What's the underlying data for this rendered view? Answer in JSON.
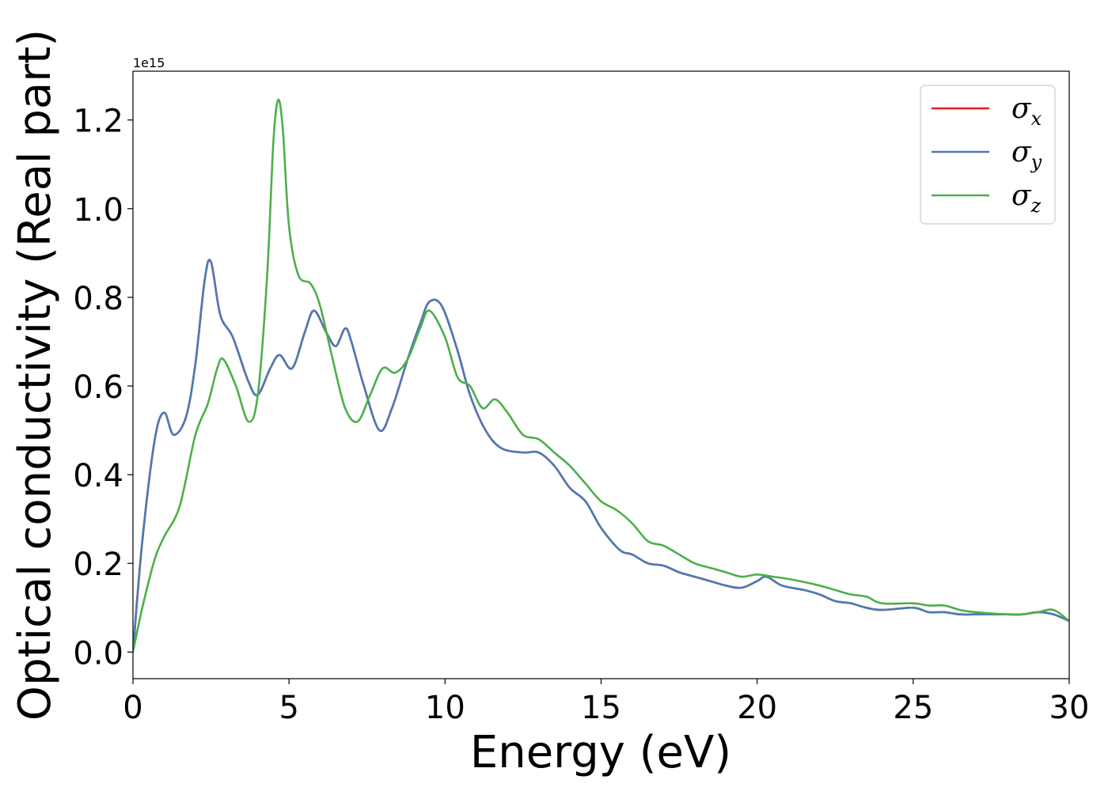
{
  "chart_data": {
    "type": "line",
    "title": "",
    "xlabel": "Energy (eV)",
    "ylabel": "Optical conductivity (Real part)",
    "y_multiplier": "1e15",
    "xlim": [
      0,
      30
    ],
    "ylim": [
      -0.06,
      1.31
    ],
    "x_ticks": [
      0,
      5,
      10,
      15,
      20,
      25,
      30
    ],
    "x_tick_labels": [
      "0",
      "5",
      "10",
      "15",
      "20",
      "25",
      "30"
    ],
    "y_ticks": [
      0.0,
      0.2,
      0.4,
      0.6,
      0.8,
      1.0,
      1.2
    ],
    "y_tick_labels": [
      "0.0",
      "0.2",
      "0.4",
      "0.6",
      "0.8",
      "1.0",
      "1.2"
    ],
    "grid": false,
    "legend_position": "top-right",
    "series": [
      {
        "name": "σx",
        "symbol": "σ",
        "subscript": "x",
        "color": "#e41a1c",
        "points": [
          [
            0,
            0
          ],
          [
            0.3,
            0.25
          ],
          [
            0.7,
            0.48
          ],
          [
            1.0,
            0.54
          ],
          [
            1.3,
            0.49
          ],
          [
            1.7,
            0.53
          ],
          [
            2.0,
            0.65
          ],
          [
            2.3,
            0.84
          ],
          [
            2.5,
            0.88
          ],
          [
            2.8,
            0.76
          ],
          [
            3.2,
            0.71
          ],
          [
            3.7,
            0.61
          ],
          [
            4.0,
            0.58
          ],
          [
            4.4,
            0.64
          ],
          [
            4.7,
            0.67
          ],
          [
            5.1,
            0.64
          ],
          [
            5.5,
            0.72
          ],
          [
            5.8,
            0.77
          ],
          [
            6.2,
            0.72
          ],
          [
            6.5,
            0.69
          ],
          [
            6.8,
            0.73
          ],
          [
            7.0,
            0.7
          ],
          [
            7.4,
            0.6
          ],
          [
            7.9,
            0.5
          ],
          [
            8.3,
            0.55
          ],
          [
            8.8,
            0.66
          ],
          [
            9.2,
            0.74
          ],
          [
            9.5,
            0.79
          ],
          [
            9.9,
            0.78
          ],
          [
            10.4,
            0.68
          ],
          [
            10.8,
            0.58
          ],
          [
            11.3,
            0.5
          ],
          [
            11.8,
            0.46
          ],
          [
            12.5,
            0.45
          ],
          [
            13.0,
            0.45
          ],
          [
            13.5,
            0.42
          ],
          [
            14.0,
            0.37
          ],
          [
            14.5,
            0.34
          ],
          [
            15.0,
            0.28
          ],
          [
            15.6,
            0.23
          ],
          [
            16.0,
            0.22
          ],
          [
            16.5,
            0.2
          ],
          [
            17.0,
            0.195
          ],
          [
            17.5,
            0.18
          ],
          [
            18.0,
            0.17
          ],
          [
            18.5,
            0.16
          ],
          [
            19.0,
            0.15
          ],
          [
            19.5,
            0.145
          ],
          [
            20.0,
            0.16
          ],
          [
            20.3,
            0.17
          ],
          [
            20.8,
            0.15
          ],
          [
            21.5,
            0.14
          ],
          [
            22.0,
            0.13
          ],
          [
            22.5,
            0.115
          ],
          [
            23.0,
            0.11
          ],
          [
            23.5,
            0.1
          ],
          [
            24.0,
            0.095
          ],
          [
            25.0,
            0.1
          ],
          [
            25.5,
            0.09
          ],
          [
            26.0,
            0.09
          ],
          [
            26.5,
            0.085
          ],
          [
            27.0,
            0.085
          ],
          [
            28.0,
            0.085
          ],
          [
            28.5,
            0.085
          ],
          [
            29.0,
            0.09
          ],
          [
            29.5,
            0.085
          ],
          [
            30.0,
            0.07
          ]
        ]
      },
      {
        "name": "σy",
        "symbol": "σ",
        "subscript": "y",
        "color": "#4a7bb5",
        "points": [
          [
            0,
            0
          ],
          [
            0.3,
            0.25
          ],
          [
            0.7,
            0.48
          ],
          [
            1.0,
            0.54
          ],
          [
            1.3,
            0.49
          ],
          [
            1.7,
            0.53
          ],
          [
            2.0,
            0.65
          ],
          [
            2.3,
            0.84
          ],
          [
            2.5,
            0.88
          ],
          [
            2.8,
            0.76
          ],
          [
            3.2,
            0.71
          ],
          [
            3.7,
            0.61
          ],
          [
            4.0,
            0.58
          ],
          [
            4.4,
            0.64
          ],
          [
            4.7,
            0.67
          ],
          [
            5.1,
            0.64
          ],
          [
            5.5,
            0.72
          ],
          [
            5.8,
            0.77
          ],
          [
            6.2,
            0.72
          ],
          [
            6.5,
            0.69
          ],
          [
            6.8,
            0.73
          ],
          [
            7.0,
            0.7
          ],
          [
            7.4,
            0.6
          ],
          [
            7.9,
            0.5
          ],
          [
            8.3,
            0.55
          ],
          [
            8.8,
            0.66
          ],
          [
            9.2,
            0.74
          ],
          [
            9.5,
            0.79
          ],
          [
            9.9,
            0.78
          ],
          [
            10.4,
            0.68
          ],
          [
            10.8,
            0.58
          ],
          [
            11.3,
            0.5
          ],
          [
            11.8,
            0.46
          ],
          [
            12.5,
            0.45
          ],
          [
            13.0,
            0.45
          ],
          [
            13.5,
            0.42
          ],
          [
            14.0,
            0.37
          ],
          [
            14.5,
            0.34
          ],
          [
            15.0,
            0.28
          ],
          [
            15.6,
            0.23
          ],
          [
            16.0,
            0.22
          ],
          [
            16.5,
            0.2
          ],
          [
            17.0,
            0.195
          ],
          [
            17.5,
            0.18
          ],
          [
            18.0,
            0.17
          ],
          [
            18.5,
            0.16
          ],
          [
            19.0,
            0.15
          ],
          [
            19.5,
            0.145
          ],
          [
            20.0,
            0.16
          ],
          [
            20.3,
            0.17
          ],
          [
            20.8,
            0.15
          ],
          [
            21.5,
            0.14
          ],
          [
            22.0,
            0.13
          ],
          [
            22.5,
            0.115
          ],
          [
            23.0,
            0.11
          ],
          [
            23.5,
            0.1
          ],
          [
            24.0,
            0.095
          ],
          [
            25.0,
            0.1
          ],
          [
            25.5,
            0.09
          ],
          [
            26.0,
            0.09
          ],
          [
            26.5,
            0.085
          ],
          [
            27.0,
            0.085
          ],
          [
            28.0,
            0.085
          ],
          [
            28.5,
            0.085
          ],
          [
            29.0,
            0.09
          ],
          [
            29.5,
            0.085
          ],
          [
            30.0,
            0.07
          ]
        ]
      },
      {
        "name": "σz",
        "symbol": "σ",
        "subscript": "z",
        "color": "#4daf4a",
        "points": [
          [
            0,
            0
          ],
          [
            0.3,
            0.1
          ],
          [
            0.7,
            0.21
          ],
          [
            1.0,
            0.26
          ],
          [
            1.5,
            0.33
          ],
          [
            2.0,
            0.49
          ],
          [
            2.4,
            0.56
          ],
          [
            2.7,
            0.64
          ],
          [
            2.9,
            0.66
          ],
          [
            3.3,
            0.6
          ],
          [
            3.7,
            0.52
          ],
          [
            4.0,
            0.58
          ],
          [
            4.3,
            0.85
          ],
          [
            4.5,
            1.15
          ],
          [
            4.65,
            1.245
          ],
          [
            4.8,
            1.18
          ],
          [
            5.0,
            0.96
          ],
          [
            5.3,
            0.85
          ],
          [
            5.7,
            0.83
          ],
          [
            6.0,
            0.78
          ],
          [
            6.4,
            0.66
          ],
          [
            6.8,
            0.55
          ],
          [
            7.2,
            0.52
          ],
          [
            7.6,
            0.58
          ],
          [
            8.0,
            0.64
          ],
          [
            8.4,
            0.63
          ],
          [
            8.8,
            0.66
          ],
          [
            9.2,
            0.73
          ],
          [
            9.5,
            0.77
          ],
          [
            10.0,
            0.71
          ],
          [
            10.4,
            0.62
          ],
          [
            10.8,
            0.6
          ],
          [
            11.2,
            0.55
          ],
          [
            11.6,
            0.57
          ],
          [
            12.0,
            0.54
          ],
          [
            12.5,
            0.49
          ],
          [
            13.0,
            0.48
          ],
          [
            13.5,
            0.45
          ],
          [
            14.0,
            0.42
          ],
          [
            14.5,
            0.38
          ],
          [
            15.0,
            0.34
          ],
          [
            15.5,
            0.32
          ],
          [
            16.0,
            0.29
          ],
          [
            16.5,
            0.25
          ],
          [
            17.0,
            0.24
          ],
          [
            17.5,
            0.22
          ],
          [
            18.0,
            0.2
          ],
          [
            18.5,
            0.19
          ],
          [
            19.0,
            0.18
          ],
          [
            19.5,
            0.17
          ],
          [
            20.0,
            0.175
          ],
          [
            20.5,
            0.17
          ],
          [
            21.0,
            0.165
          ],
          [
            22.0,
            0.15
          ],
          [
            22.5,
            0.14
          ],
          [
            23.0,
            0.13
          ],
          [
            23.5,
            0.125
          ],
          [
            24.0,
            0.11
          ],
          [
            25.0,
            0.11
          ],
          [
            25.5,
            0.105
          ],
          [
            26.0,
            0.105
          ],
          [
            26.5,
            0.095
          ],
          [
            27.0,
            0.09
          ],
          [
            28.0,
            0.085
          ],
          [
            28.5,
            0.085
          ],
          [
            29.0,
            0.09
          ],
          [
            29.5,
            0.095
          ],
          [
            30.0,
            0.07
          ]
        ]
      }
    ]
  }
}
